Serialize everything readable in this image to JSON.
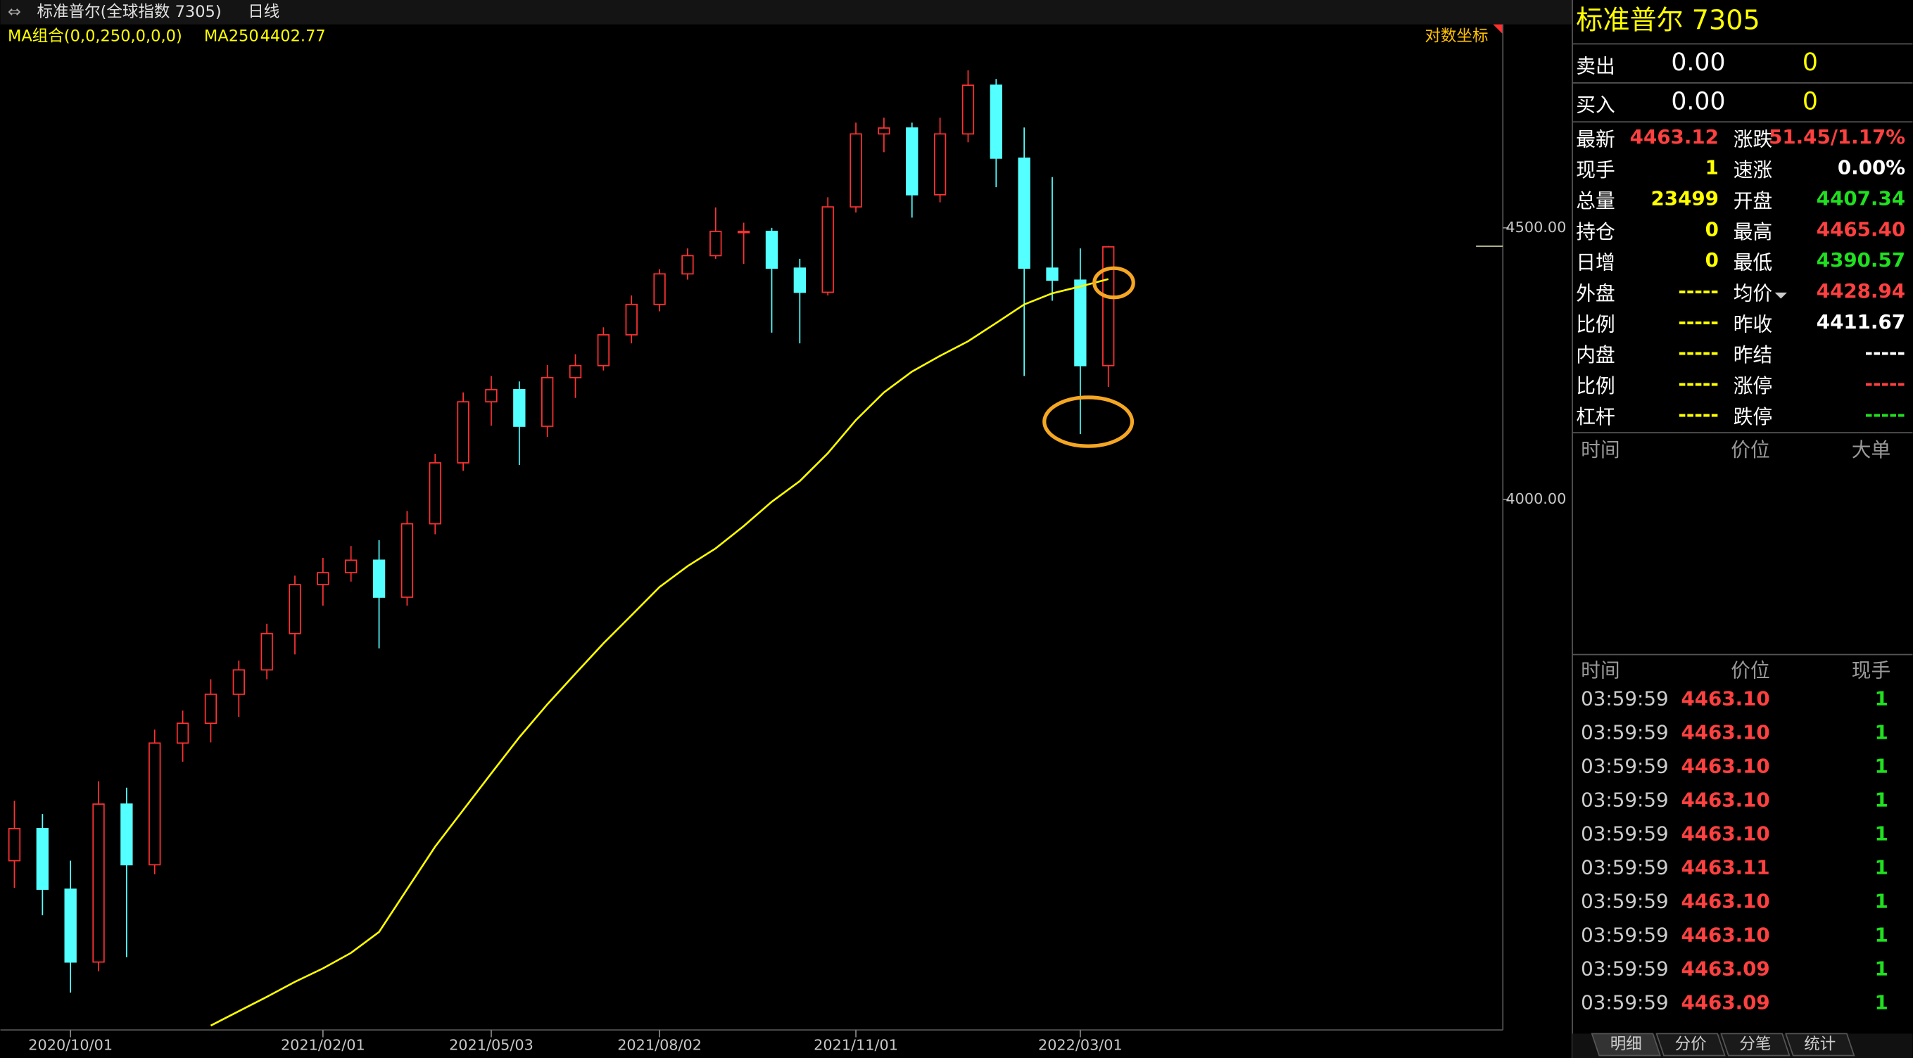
{
  "header": {
    "title": "标准普尔(全球指数  7305)",
    "period": "日线",
    "ma_group": "MA组合(0,0,250,0,0,0)",
    "ma_value": "4402.77",
    "scale_mode": "对数坐标"
  },
  "chart_data": {
    "type": "candlestick",
    "log_scale": true,
    "ylim": [
      3178,
      4915
    ],
    "yticks": [
      {
        "value": 4000,
        "label": "4000.00"
      },
      {
        "value": 4500,
        "label": "4500.00"
      }
    ],
    "categories": [
      null,
      null,
      "2020/10/01",
      null,
      null,
      null,
      null,
      null,
      null,
      null,
      null,
      "2021/02/01",
      null,
      null,
      null,
      null,
      null,
      "2021/05/03",
      null,
      null,
      null,
      null,
      null,
      "2021/08/02",
      null,
      null,
      null,
      null,
      null,
      null,
      "2021/11/01",
      null,
      null,
      null,
      null,
      null,
      null,
      null,
      "2022/03/01",
      null
    ],
    "open": [
      3420,
      3468,
      3378,
      3273,
      3505,
      3414,
      3599,
      3630,
      3676,
      3715,
      3774,
      3855,
      3875,
      3896,
      3834,
      3958,
      4064,
      4173,
      4195,
      4129,
      4217,
      4239,
      4296,
      4353,
      4411,
      4446,
      4493,
      4493,
      4422,
      4376,
      4541,
      4687,
      4699,
      4565,
      4687,
      4787,
      4638,
      4422,
      4399,
      4239
    ],
    "high": [
      3510,
      3490,
      3420,
      3540,
      3530,
      3620,
      3650,
      3700,
      3730,
      3790,
      3870,
      3900,
      3920,
      3930,
      3980,
      4080,
      4190,
      4220,
      4210,
      4240,
      4260,
      4310,
      4370,
      4420,
      4460,
      4540,
      4510,
      4500,
      4440,
      4560,
      4710,
      4720,
      4710,
      4720,
      4818,
      4800,
      4700,
      4600,
      4460,
      4465
    ],
    "low": [
      3380,
      3340,
      3230,
      3260,
      3280,
      3400,
      3570,
      3600,
      3640,
      3700,
      3740,
      3820,
      3860,
      3750,
      3820,
      3940,
      4050,
      4130,
      4060,
      4110,
      4180,
      4230,
      4280,
      4340,
      4400,
      4440,
      4430,
      4300,
      4280,
      4370,
      4530,
      4650,
      4520,
      4550,
      4670,
      4580,
      4220,
      4360,
      4115,
      4200
    ],
    "close": [
      3468,
      3378,
      3273,
      3505,
      3414,
      3599,
      3630,
      3676,
      3715,
      3774,
      3855,
      3875,
      3896,
      3834,
      3958,
      4064,
      4173,
      4195,
      4129,
      4217,
      4239,
      4296,
      4353,
      4411,
      4446,
      4493,
      4493,
      4422,
      4376,
      4541,
      4687,
      4699,
      4565,
      4687,
      4787,
      4638,
      4422,
      4399,
      4239,
      4463
    ],
    "up_color": "#ff3232",
    "down_color": "#54ffff",
    "lines": [
      {
        "name": "MA250",
        "color": "#ffff00",
        "values": [
          null,
          null,
          null,
          null,
          null,
          null,
          null,
          3184,
          3204,
          3224,
          3245,
          3264,
          3286,
          3316,
          3378,
          3441,
          3496,
          3552,
          3608,
          3660,
          3709,
          3758,
          3804,
          3851,
          3886,
          3916,
          3954,
          3996,
          4032,
          4081,
          4140,
          4190,
          4228,
          4257,
          4284,
          4318,
          4353,
          4374,
          4387,
          4401
        ]
      }
    ]
  },
  "quote": {
    "title": "标准普尔  7305",
    "sell": {
      "label": "卖出",
      "price": "0.00",
      "volume": "0"
    },
    "buy": {
      "label": "买入",
      "price": "0.00",
      "volume": "0"
    },
    "rows": [
      {
        "left_label": "最新",
        "left_value": "4463.12",
        "left_color": "#ff4040",
        "right_label": "涨跌",
        "right_value": "51.45/1.17%",
        "right_color": "#ff4040"
      },
      {
        "left_label": "现手",
        "left_value": "1",
        "left_color": "#ffff00",
        "right_label": "速涨",
        "right_value": "0.00%",
        "right_color": "#ffffff"
      },
      {
        "left_label": "总量",
        "left_value": "23499",
        "left_color": "#ffff00",
        "right_label": "开盘",
        "right_value": "4407.34",
        "right_color": "#20e020"
      },
      {
        "left_label": "持仓",
        "left_value": "0",
        "left_color": "#ffff00",
        "right_label": "最高",
        "right_value": "4465.40",
        "right_color": "#ff4040"
      },
      {
        "left_label": "日增",
        "left_value": "0",
        "left_color": "#ffff00",
        "right_label": "最低",
        "right_value": "4390.57",
        "right_color": "#20e020"
      },
      {
        "left_label": "外盘",
        "left_value": "-----",
        "left_color": "#ffff00",
        "right_label": "均价",
        "right_value": "4428.94",
        "right_color": "#ff4040"
      },
      {
        "left_label": "比例",
        "left_value": "-----",
        "left_color": "#ffff00",
        "right_label": "昨收",
        "right_value": "4411.67",
        "right_color": "#ffffff"
      },
      {
        "left_label": "内盘",
        "left_value": "-----",
        "left_color": "#ffff00",
        "right_label": "昨结",
        "right_value": "-----",
        "right_color": "#ffffff"
      },
      {
        "left_label": "比例",
        "left_value": "-----",
        "left_color": "#ffff00",
        "right_label": "涨停",
        "right_value": "-----",
        "right_color": "#ff4040"
      },
      {
        "left_label": "杠杆",
        "left_value": "-----",
        "left_color": "#ffff00",
        "right_label": "跌停",
        "right_value": "-----",
        "right_color": "#20e020"
      }
    ]
  },
  "big_orders": {
    "headers": [
      "时间",
      "价位",
      "大单"
    ]
  },
  "trades": {
    "headers": [
      "时间",
      "价位",
      "现手"
    ],
    "rows": [
      [
        "03:59:59",
        "4463.10",
        "1"
      ],
      [
        "03:59:59",
        "4463.10",
        "1"
      ],
      [
        "03:59:59",
        "4463.10",
        "1"
      ],
      [
        "03:59:59",
        "4463.10",
        "1"
      ],
      [
        "03:59:59",
        "4463.10",
        "1"
      ],
      [
        "03:59:59",
        "4463.11",
        "1"
      ],
      [
        "03:59:59",
        "4463.10",
        "1"
      ],
      [
        "03:59:59",
        "4463.10",
        "1"
      ],
      [
        "03:59:59",
        "4463.09",
        "1"
      ],
      [
        "03:59:59",
        "4463.09",
        "1"
      ]
    ]
  },
  "tabs": [
    "明细",
    "分价",
    "分笔",
    "统计"
  ]
}
